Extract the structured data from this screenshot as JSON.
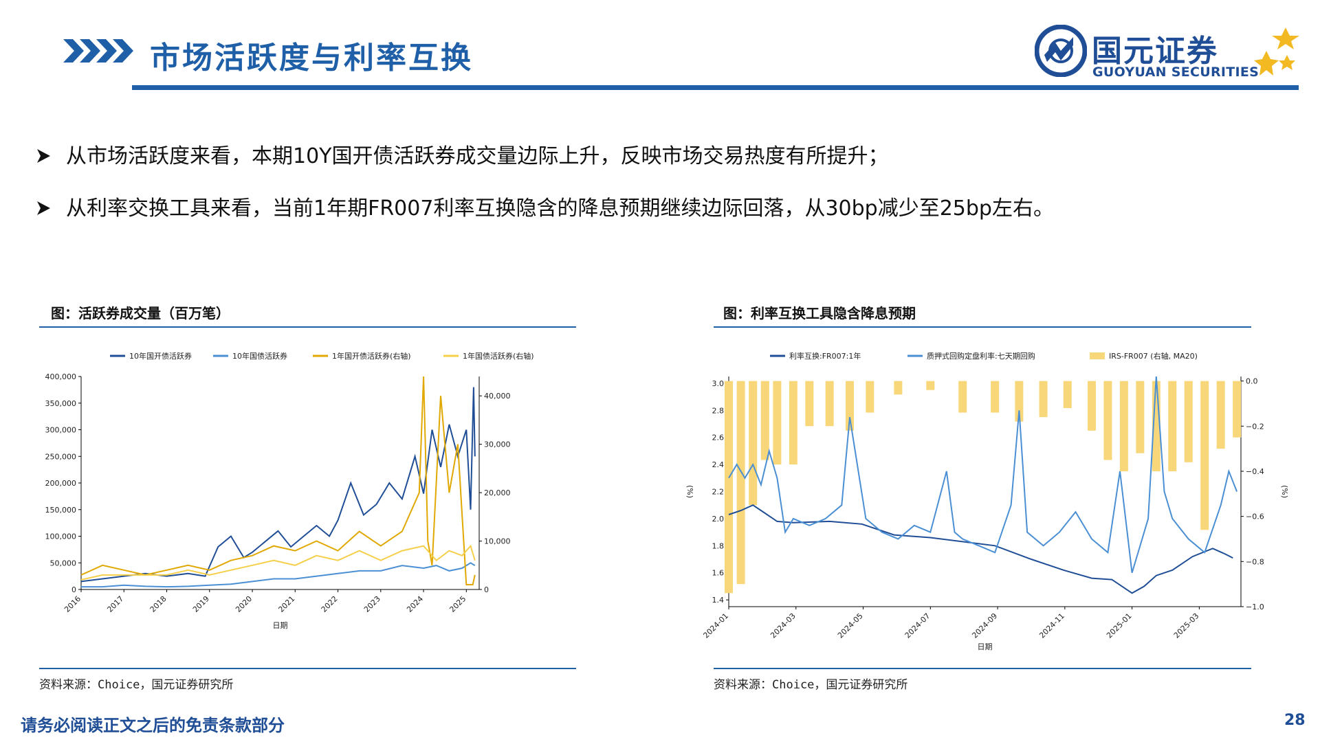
{
  "header": {
    "title": "市场活跃度与利率互换",
    "brand_cn": "国元证券",
    "brand_en": "GUOYUAN SECURITIES",
    "brand_color": "#1f4e96",
    "accent_gold": "#f3b922"
  },
  "bullets": [
    "从市场活跃度来看，本期10Y国开债活跃券成交量边际上升，反映市场交易热度有所提升；",
    "从利率交换工具来看，当前1年期FR007利率互换隐含的降息预期继续边际回落，从30bp减少至25bp左右。"
  ],
  "left_panel": {
    "title": "图：活跃券成交量（百万笔）",
    "source": "资料来源：Choice，国元证券研究所"
  },
  "right_panel": {
    "title": "图：利率互换工具隐含降息预期",
    "source": "资料来源：Choice，国元证券研究所"
  },
  "footer": {
    "disclaimer": "请务必阅读正文之后的免责条款部分",
    "page_number": "28"
  },
  "chart_data": [
    {
      "type": "line",
      "xlabel": "日期",
      "x_ticks": [
        "2016",
        "2017",
        "2018",
        "2019",
        "2020",
        "2021",
        "2022",
        "2023",
        "2024",
        "2025"
      ],
      "x_range": [
        2016.0,
        2025.3
      ],
      "y_left_ticks": [
        "0",
        "50,000",
        "100,000",
        "150,000",
        "200,000",
        "250,000",
        "300,000",
        "350,000",
        "400,000"
      ],
      "y_left_range": [
        0,
        400000
      ],
      "y_right_ticks": [
        "0",
        "10,000",
        "20,000",
        "30,000",
        "40,000"
      ],
      "y_right_range": [
        0,
        44000
      ],
      "legend_position": "top",
      "series": [
        {
          "name": "10年国开债活跃券",
          "axis": "left",
          "color": "#1f4e96",
          "x": [
            2016.0,
            2016.5,
            2017.0,
            2017.5,
            2018.0,
            2018.5,
            2018.9,
            2019.2,
            2019.5,
            2019.8,
            2020.0,
            2020.3,
            2020.6,
            2020.9,
            2021.2,
            2021.5,
            2021.8,
            2022.0,
            2022.3,
            2022.6,
            2022.9,
            2023.2,
            2023.5,
            2023.8,
            2024.0,
            2024.2,
            2024.4,
            2024.6,
            2024.8,
            2025.0,
            2025.1,
            2025.17,
            2025.2
          ],
          "y": [
            15000,
            20000,
            25000,
            30000,
            25000,
            30000,
            25000,
            80000,
            100000,
            60000,
            70000,
            90000,
            110000,
            80000,
            100000,
            120000,
            100000,
            130000,
            200000,
            140000,
            160000,
            200000,
            170000,
            250000,
            180000,
            300000,
            230000,
            310000,
            250000,
            300000,
            150000,
            380000,
            250000
          ]
        },
        {
          "name": "10年国债活跃券",
          "axis": "left",
          "color": "#4a8fd4",
          "x": [
            2016.0,
            2016.5,
            2017.0,
            2017.5,
            2018.0,
            2018.5,
            2019.0,
            2019.5,
            2020.0,
            2020.5,
            2021.0,
            2021.5,
            2022.0,
            2022.5,
            2023.0,
            2023.5,
            2024.0,
            2024.3,
            2024.6,
            2024.9,
            2025.1,
            2025.2
          ],
          "y": [
            5000,
            5000,
            8000,
            6000,
            5000,
            6000,
            8000,
            10000,
            15000,
            20000,
            20000,
            25000,
            30000,
            35000,
            35000,
            45000,
            40000,
            45000,
            35000,
            40000,
            50000,
            45000
          ]
        },
        {
          "name": "1年国开债活跃券(右轴)",
          "axis": "right",
          "color": "#e0a800",
          "x": [
            2016.0,
            2016.5,
            2017.0,
            2017.5,
            2018.0,
            2018.5,
            2019.0,
            2019.5,
            2020.0,
            2020.5,
            2021.0,
            2021.5,
            2022.0,
            2022.5,
            2023.0,
            2023.5,
            2023.9,
            2024.0,
            2024.1,
            2024.2,
            2024.4,
            2024.6,
            2024.8,
            2025.0,
            2025.15,
            2025.2
          ],
          "y": [
            3000,
            5000,
            4000,
            3000,
            4000,
            5000,
            4000,
            6000,
            7000,
            9000,
            8000,
            10000,
            8000,
            12000,
            9000,
            12000,
            20000,
            44000,
            10000,
            5000,
            40000,
            20000,
            30000,
            1000,
            1000,
            3000
          ]
        },
        {
          "name": "1年国债活跃券(右轴)",
          "axis": "right",
          "color": "#f5cf4a",
          "x": [
            2016.0,
            2016.5,
            2017.0,
            2017.5,
            2018.0,
            2018.5,
            2019.0,
            2019.5,
            2020.0,
            2020.5,
            2021.0,
            2021.5,
            2022.0,
            2022.5,
            2023.0,
            2023.5,
            2024.0,
            2024.3,
            2024.6,
            2024.9,
            2025.1,
            2025.2
          ],
          "y": [
            2000,
            3000,
            3000,
            3000,
            3000,
            4000,
            3000,
            4000,
            5000,
            6000,
            5000,
            7000,
            6000,
            8000,
            6000,
            8000,
            9000,
            6000,
            8000,
            7000,
            9000,
            6000
          ]
        }
      ]
    },
    {
      "type": "line",
      "xlabel": "日期",
      "x_ticks": [
        "2024-01",
        "2024-03",
        "2024-05",
        "2024-07",
        "2024-09",
        "2024-11",
        "2025-01",
        "2025-03"
      ],
      "x_range": [
        2024.0,
        2025.27
      ],
      "y_left_label": "(%)",
      "y_left_ticks": [
        "1.4",
        "1.6",
        "1.8",
        "2.0",
        "2.2",
        "2.4",
        "2.6",
        "2.8",
        "3.0"
      ],
      "y_left_range": [
        1.35,
        3.05
      ],
      "y_right_label": "(%)",
      "y_right_ticks": [
        "−1.0",
        "−0.8",
        "−0.6",
        "−0.4",
        "−0.2",
        "0.0"
      ],
      "y_right_range": [
        -1.0,
        0.02
      ],
      "legend_position": "top",
      "series": [
        {
          "name": "利率互换:FR007:1年",
          "axis": "left",
          "color": "#1f4e96",
          "x": [
            2024.0,
            2024.03,
            2024.06,
            2024.09,
            2024.12,
            2024.16,
            2024.25,
            2024.33,
            2024.41,
            2024.5,
            2024.58,
            2024.66,
            2024.75,
            2024.83,
            2024.9,
            2024.95,
            2025.0,
            2025.03,
            2025.06,
            2025.1,
            2025.15,
            2025.2,
            2025.23,
            2025.25
          ],
          "y": [
            2.03,
            2.06,
            2.1,
            2.04,
            1.98,
            1.97,
            1.98,
            1.96,
            1.88,
            1.86,
            1.83,
            1.8,
            1.7,
            1.62,
            1.56,
            1.55,
            1.45,
            1.5,
            1.58,
            1.62,
            1.72,
            1.78,
            1.74,
            1.71
          ]
        },
        {
          "name": "质押式回购定盘利率:七天期回购",
          "axis": "left",
          "color": "#4a8fd4",
          "x": [
            2024.0,
            2024.02,
            2024.04,
            2024.06,
            2024.08,
            2024.1,
            2024.12,
            2024.14,
            2024.16,
            2024.2,
            2024.24,
            2024.28,
            2024.3,
            2024.34,
            2024.38,
            2024.42,
            2024.46,
            2024.5,
            2024.54,
            2024.56,
            2024.58,
            2024.62,
            2024.66,
            2024.7,
            2024.72,
            2024.74,
            2024.78,
            2024.82,
            2024.86,
            2024.9,
            2024.94,
            2024.97,
            2025.0,
            2025.04,
            2025.06,
            2025.08,
            2025.1,
            2025.14,
            2025.18,
            2025.22,
            2025.24,
            2025.26
          ],
          "y": [
            2.3,
            2.4,
            2.3,
            2.4,
            2.25,
            2.5,
            2.3,
            1.9,
            2.0,
            1.95,
            2.0,
            2.1,
            2.75,
            2.0,
            1.9,
            1.85,
            1.95,
            1.9,
            2.35,
            1.9,
            1.85,
            1.8,
            1.75,
            2.1,
            2.8,
            1.9,
            1.8,
            1.9,
            2.05,
            1.85,
            1.75,
            2.35,
            1.6,
            2.0,
            3.05,
            2.2,
            2.0,
            1.85,
            1.75,
            2.1,
            2.35,
            2.2
          ]
        },
        {
          "name": "IRS-FR007 (右轴, MA20)",
          "axis": "right",
          "type": "bar",
          "color": "#f8d77a",
          "x": [
            2024.0,
            2024.03,
            2024.06,
            2024.09,
            2024.12,
            2024.16,
            2024.2,
            2024.25,
            2024.3,
            2024.35,
            2024.42,
            2024.5,
            2024.58,
            2024.66,
            2024.72,
            2024.78,
            2024.84,
            2024.9,
            2024.94,
            2024.98,
            2025.02,
            2025.06,
            2025.1,
            2025.14,
            2025.18,
            2025.22,
            2025.26
          ],
          "y": [
            -0.94,
            -0.9,
            -0.55,
            -0.35,
            -0.37,
            -0.37,
            -0.2,
            -0.2,
            -0.22,
            -0.14,
            -0.06,
            -0.04,
            -0.14,
            -0.14,
            -0.18,
            -0.16,
            -0.12,
            -0.22,
            -0.35,
            -0.4,
            -0.32,
            -0.4,
            -0.4,
            -0.36,
            -0.66,
            -0.3,
            -0.25
          ]
        }
      ]
    }
  ]
}
